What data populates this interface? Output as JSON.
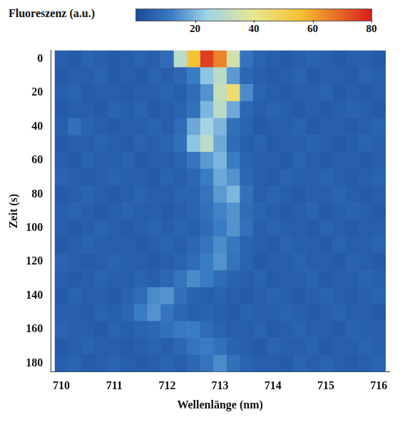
{
  "chart_data": {
    "type": "heatmap",
    "xlabel": "Wellenlänge (nm)",
    "ylabel": "Zeit (s)",
    "x": [
      710,
      710.25,
      710.5,
      710.75,
      711,
      711.25,
      711.5,
      711.75,
      712,
      712.25,
      712.5,
      712.75,
      713,
      713.25,
      713.5,
      713.75,
      714,
      714.25,
      714.5,
      714.75,
      715,
      715.25,
      715.5,
      715.75,
      716
    ],
    "y": [
      0,
      10,
      20,
      30,
      40,
      50,
      60,
      70,
      80,
      90,
      100,
      110,
      120,
      130,
      140,
      150,
      160,
      170,
      180
    ],
    "cells": [
      [
        5,
        4,
        6,
        5,
        4,
        5,
        6,
        5,
        8,
        30,
        55,
        75,
        65,
        35,
        10,
        6,
        5,
        4,
        5,
        6,
        5,
        4,
        5,
        5,
        4
      ],
      [
        4,
        5,
        5,
        6,
        4,
        5,
        4,
        6,
        5,
        7,
        12,
        22,
        30,
        16,
        7,
        5,
        4,
        5,
        6,
        4,
        5,
        5,
        4,
        6,
        5
      ],
      [
        5,
        6,
        4,
        5,
        5,
        4,
        5,
        5,
        6,
        5,
        8,
        15,
        32,
        45,
        14,
        6,
        5,
        4,
        5,
        5,
        6,
        4,
        5,
        4,
        5
      ],
      [
        4,
        5,
        5,
        4,
        6,
        5,
        6,
        4,
        5,
        6,
        9,
        20,
        30,
        18,
        7,
        5,
        6,
        5,
        4,
        5,
        4,
        5,
        6,
        5,
        4
      ],
      [
        5,
        9,
        6,
        5,
        4,
        5,
        5,
        6,
        5,
        8,
        18,
        25,
        20,
        9,
        6,
        4,
        5,
        5,
        6,
        4,
        5,
        5,
        4,
        5,
        6
      ],
      [
        4,
        5,
        5,
        6,
        5,
        4,
        6,
        5,
        6,
        9,
        22,
        30,
        18,
        8,
        5,
        6,
        4,
        5,
        5,
        6,
        5,
        4,
        5,
        6,
        5
      ],
      [
        5,
        4,
        6,
        5,
        5,
        6,
        4,
        5,
        5,
        6,
        10,
        16,
        20,
        12,
        6,
        5,
        5,
        4,
        6,
        5,
        4,
        5,
        5,
        4,
        5
      ],
      [
        6,
        5,
        4,
        5,
        6,
        5,
        5,
        4,
        6,
        5,
        7,
        12,
        18,
        15,
        7,
        5,
        4,
        6,
        5,
        5,
        6,
        5,
        4,
        5,
        6
      ],
      [
        4,
        5,
        6,
        5,
        4,
        5,
        6,
        5,
        5,
        6,
        6,
        10,
        16,
        20,
        9,
        5,
        6,
        5,
        4,
        5,
        5,
        6,
        5,
        4,
        5
      ],
      [
        5,
        6,
        5,
        4,
        5,
        6,
        5,
        5,
        4,
        5,
        6,
        9,
        13,
        15,
        8,
        6,
        5,
        4,
        5,
        6,
        4,
        5,
        6,
        5,
        4
      ],
      [
        5,
        4,
        5,
        6,
        5,
        4,
        5,
        6,
        5,
        6,
        5,
        8,
        12,
        15,
        9,
        5,
        6,
        5,
        5,
        4,
        6,
        5,
        4,
        5,
        5
      ],
      [
        4,
        5,
        6,
        5,
        5,
        5,
        4,
        5,
        6,
        5,
        7,
        10,
        14,
        11,
        6,
        5,
        4,
        6,
        5,
        5,
        4,
        6,
        5,
        5,
        6
      ],
      [
        6,
        5,
        4,
        5,
        6,
        5,
        5,
        4,
        5,
        6,
        8,
        12,
        15,
        10,
        6,
        4,
        5,
        5,
        6,
        5,
        5,
        4,
        6,
        5,
        4
      ],
      [
        5,
        4,
        5,
        6,
        5,
        5,
        6,
        5,
        7,
        10,
        14,
        12,
        8,
        6,
        5,
        6,
        4,
        5,
        5,
        6,
        4,
        5,
        5,
        6,
        5
      ],
      [
        4,
        6,
        5,
        5,
        4,
        6,
        8,
        14,
        15,
        9,
        6,
        5,
        6,
        5,
        4,
        5,
        6,
        5,
        4,
        5,
        6,
        5,
        4,
        5,
        6
      ],
      [
        5,
        5,
        4,
        6,
        5,
        7,
        12,
        15,
        10,
        7,
        5,
        6,
        5,
        4,
        6,
        5,
        5,
        6,
        5,
        4,
        5,
        6,
        5,
        5,
        4
      ],
      [
        6,
        5,
        5,
        4,
        6,
        5,
        6,
        7,
        9,
        11,
        12,
        8,
        6,
        5,
        5,
        6,
        4,
        5,
        6,
        5,
        5,
        4,
        6,
        5,
        5
      ],
      [
        4,
        5,
        6,
        5,
        5,
        4,
        5,
        6,
        5,
        7,
        10,
        12,
        9,
        6,
        5,
        4,
        6,
        5,
        5,
        6,
        4,
        5,
        5,
        6,
        5
      ],
      [
        5,
        6,
        4,
        5,
        6,
        5,
        4,
        5,
        6,
        5,
        7,
        10,
        14,
        9,
        6,
        5,
        5,
        4,
        6,
        5,
        6,
        5,
        4,
        5,
        6
      ]
    ],
    "xlim": [
      709.8,
      716.2
    ],
    "xticks": [
      710,
      711,
      712,
      713,
      714,
      715,
      716
    ],
    "ylim": [
      -5,
      185
    ],
    "yticks": [
      0,
      20,
      40,
      60,
      80,
      100,
      120,
      140,
      160,
      180
    ],
    "colorbar": {
      "label": "Fluoreszenz (a.u.)",
      "range": [
        0,
        80
      ],
      "ticks": [
        20,
        40,
        60,
        80
      ]
    },
    "grid": false
  }
}
